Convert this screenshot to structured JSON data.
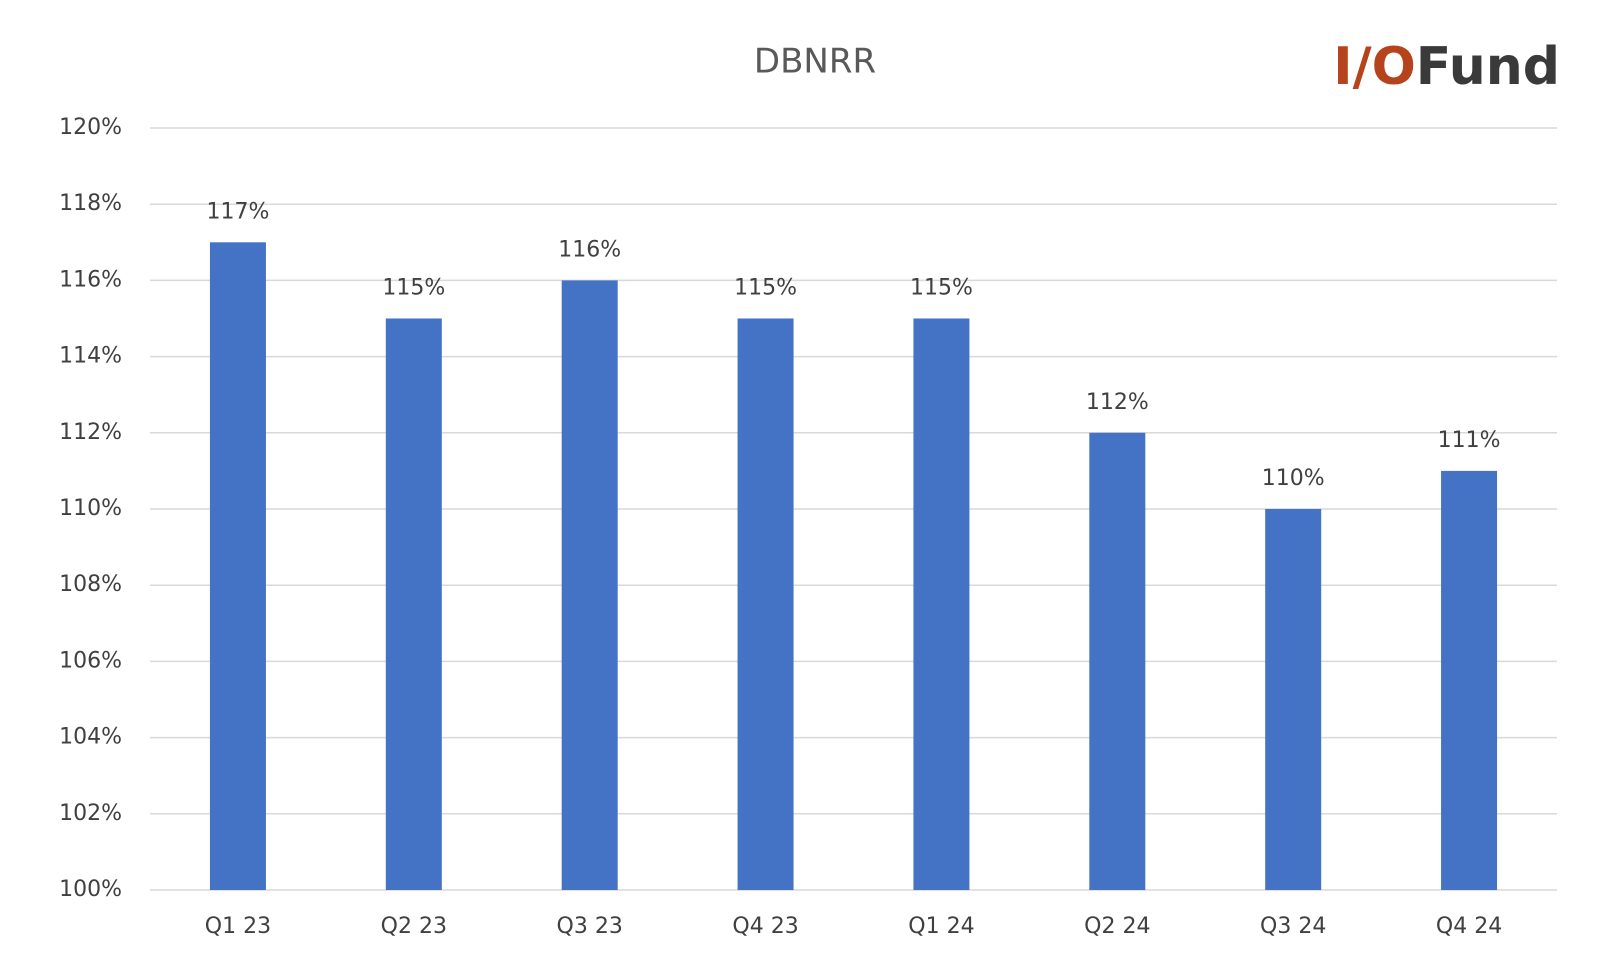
{
  "chart_data": {
    "type": "bar",
    "title": "DBNRR",
    "logo": [
      "I/O",
      "Fund"
    ],
    "categories": [
      "Q1 23",
      "Q2 23",
      "Q3 23",
      "Q4 23",
      "Q1 24",
      "Q2 24",
      "Q3 24",
      "Q4 24"
    ],
    "values": [
      117,
      115,
      116,
      115,
      115,
      112,
      110,
      111
    ],
    "value_labels": [
      "117%",
      "115%",
      "116%",
      "115%",
      "115%",
      "112%",
      "110%",
      "111%"
    ],
    "color": "#4472c4",
    "ylim": [
      100,
      120
    ],
    "yticks": [
      {
        "value": 100,
        "label": "100%"
      },
      {
        "value": 102,
        "label": "102%"
      },
      {
        "value": 104,
        "label": "104%"
      },
      {
        "value": 106,
        "label": "106%"
      },
      {
        "value": 108,
        "label": "108%"
      },
      {
        "value": 110,
        "label": "110%"
      },
      {
        "value": 112,
        "label": "112%"
      },
      {
        "value": 114,
        "label": "114%"
      },
      {
        "value": 116,
        "label": "116%"
      },
      {
        "value": 118,
        "label": "118%"
      },
      {
        "value": 120,
        "label": "120%"
      }
    ],
    "grid": true
  }
}
